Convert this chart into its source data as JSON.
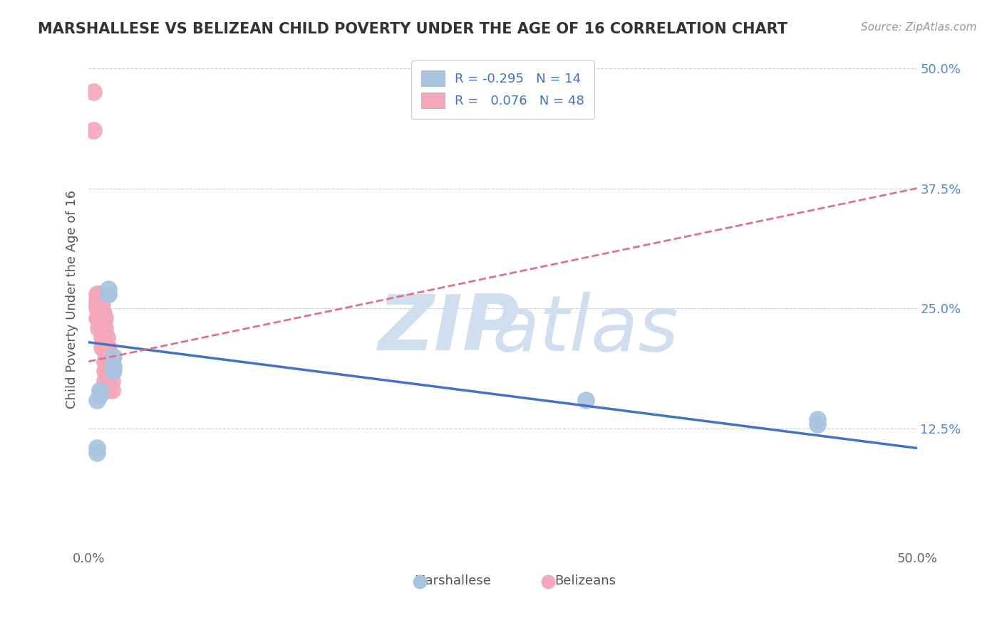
{
  "title": "MARSHALLESE VS BELIZEAN CHILD POVERTY UNDER THE AGE OF 16 CORRELATION CHART",
  "source": "Source: ZipAtlas.com",
  "ylabel": "Child Poverty Under the Age of 16",
  "xlim": [
    0.0,
    0.5
  ],
  "ylim": [
    0.0,
    0.52
  ],
  "legend_r_marsh": "-0.295",
  "legend_n_marsh": "14",
  "legend_r_belize": "0.076",
  "legend_n_belize": "48",
  "marshallese_color": "#a8c4e0",
  "belizean_color": "#f4a7b9",
  "marshallese_line_color": "#4472c4",
  "belizean_line_color": "#e07090",
  "watermark_color": "#d0dff0",
  "background_color": "#ffffff",
  "marshallese_x": [
    0.005,
    0.005,
    0.005,
    0.007,
    0.007,
    0.012,
    0.012,
    0.012,
    0.015,
    0.015,
    0.015,
    0.3,
    0.44,
    0.44
  ],
  "marshallese_y": [
    0.155,
    0.105,
    0.1,
    0.165,
    0.16,
    0.265,
    0.265,
    0.27,
    0.2,
    0.19,
    0.185,
    0.155,
    0.135,
    0.13
  ],
  "belizean_x": [
    0.003,
    0.003,
    0.005,
    0.005,
    0.005,
    0.005,
    0.005,
    0.006,
    0.006,
    0.006,
    0.006,
    0.006,
    0.007,
    0.007,
    0.007,
    0.008,
    0.008,
    0.008,
    0.008,
    0.008,
    0.008,
    0.009,
    0.009,
    0.009,
    0.009,
    0.01,
    0.01,
    0.01,
    0.01,
    0.01,
    0.01,
    0.01,
    0.01,
    0.01,
    0.011,
    0.011,
    0.011,
    0.011,
    0.012,
    0.012,
    0.012,
    0.012,
    0.012,
    0.013,
    0.013,
    0.014,
    0.014,
    0.014
  ],
  "belizean_y": [
    0.475,
    0.435,
    0.265,
    0.26,
    0.255,
    0.25,
    0.24,
    0.265,
    0.26,
    0.25,
    0.24,
    0.23,
    0.255,
    0.25,
    0.24,
    0.255,
    0.245,
    0.24,
    0.23,
    0.22,
    0.21,
    0.245,
    0.235,
    0.225,
    0.215,
    0.24,
    0.23,
    0.225,
    0.215,
    0.205,
    0.195,
    0.185,
    0.175,
    0.165,
    0.22,
    0.21,
    0.195,
    0.185,
    0.21,
    0.2,
    0.185,
    0.175,
    0.165,
    0.2,
    0.185,
    0.195,
    0.175,
    0.165
  ],
  "marsh_line_x0": 0.0,
  "marsh_line_x1": 0.5,
  "marsh_line_y0": 0.215,
  "marsh_line_y1": 0.105,
  "belize_line_x0": 0.0,
  "belize_line_x1": 0.5,
  "belize_line_y0": 0.195,
  "belize_line_y1": 0.375
}
